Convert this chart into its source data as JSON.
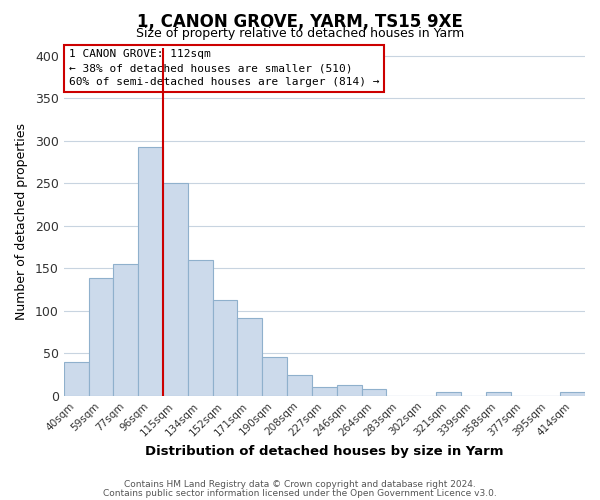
{
  "title": "1, CANON GROVE, YARM, TS15 9XE",
  "subtitle": "Size of property relative to detached houses in Yarm",
  "xlabel": "Distribution of detached houses by size in Yarm",
  "ylabel": "Number of detached properties",
  "bar_color": "#ccdaeb",
  "bar_edge_color": "#8fb0cc",
  "bins": [
    "40sqm",
    "59sqm",
    "77sqm",
    "96sqm",
    "115sqm",
    "134sqm",
    "152sqm",
    "171sqm",
    "190sqm",
    "208sqm",
    "227sqm",
    "246sqm",
    "264sqm",
    "283sqm",
    "302sqm",
    "321sqm",
    "339sqm",
    "358sqm",
    "377sqm",
    "395sqm",
    "414sqm"
  ],
  "values": [
    40,
    139,
    155,
    293,
    251,
    160,
    113,
    92,
    46,
    25,
    10,
    13,
    8,
    0,
    0,
    4,
    0,
    5,
    0,
    0,
    4
  ],
  "vline_x_idx": 3,
  "vline_color": "#cc0000",
  "annotation_title": "1 CANON GROVE: 112sqm",
  "annotation_line1": "← 38% of detached houses are smaller (510)",
  "annotation_line2": "60% of semi-detached houses are larger (814) →",
  "annotation_box_color": "#ffffff",
  "annotation_box_edge_color": "#cc0000",
  "ylim": [
    0,
    410
  ],
  "yticks": [
    0,
    50,
    100,
    150,
    200,
    250,
    300,
    350,
    400
  ],
  "footer_line1": "Contains HM Land Registry data © Crown copyright and database right 2024.",
  "footer_line2": "Contains public sector information licensed under the Open Government Licence v3.0.",
  "background_color": "#ffffff",
  "grid_color": "#c8d4e0"
}
